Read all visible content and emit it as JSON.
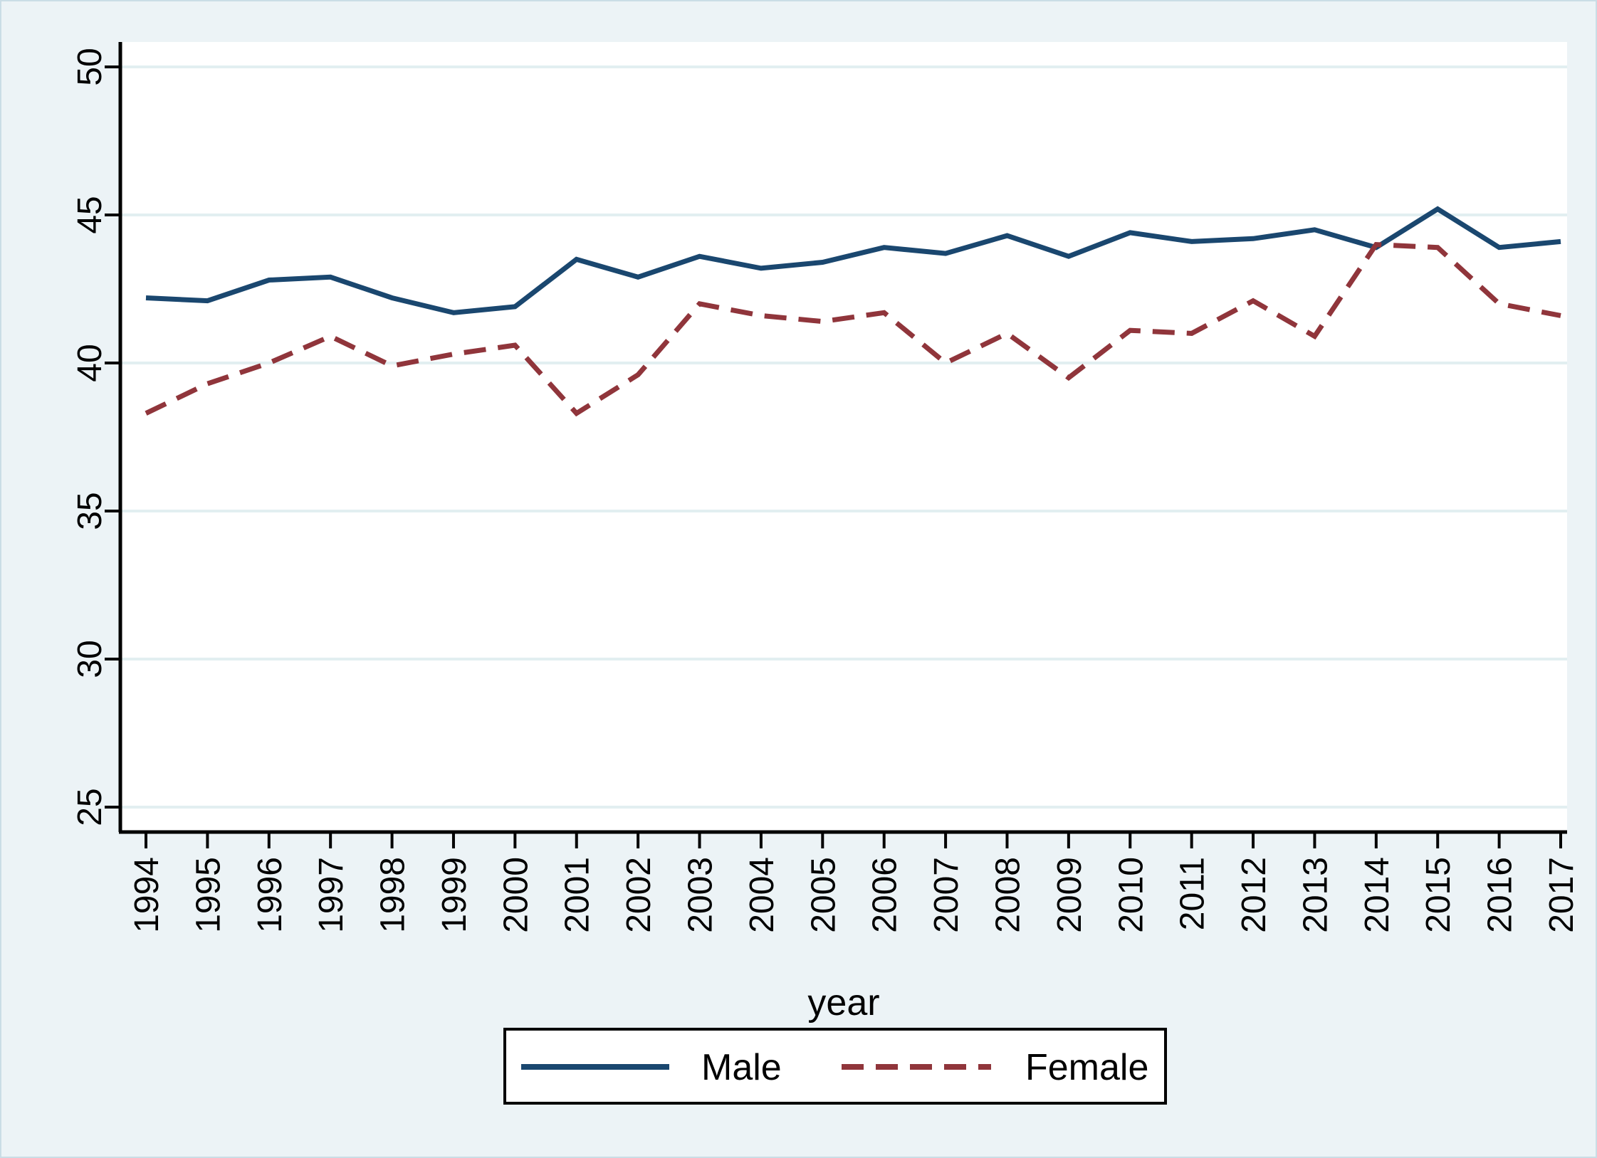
{
  "figure": {
    "background_color": "#ecf3f6",
    "plot_background_color": "#ffffff",
    "grid_color": "#e2eff1",
    "axis_color": "#000000",
    "legend_border_color": "#000000",
    "legend_background_color": "#ffffff"
  },
  "chart_data": {
    "type": "line",
    "title": "",
    "xlabel": "year",
    "ylabel": "",
    "grid": true,
    "legend_position": "bottom",
    "xlim": [
      1994,
      2017
    ],
    "ylim": [
      24.2,
      50.8
    ],
    "y_ticks": [
      25,
      30,
      35,
      40,
      45,
      50
    ],
    "x": [
      1994,
      1995,
      1996,
      1997,
      1998,
      1999,
      2000,
      2001,
      2002,
      2003,
      2004,
      2005,
      2006,
      2007,
      2008,
      2009,
      2010,
      2011,
      2012,
      2013,
      2014,
      2015,
      2016,
      2017
    ],
    "x_tick_labels": [
      "1994",
      "1995",
      "1996",
      "1997",
      "1998",
      "1999",
      "2000",
      "2001",
      "2002",
      "2003",
      "2004",
      "2005",
      "2006",
      "2007",
      "2008",
      "2009",
      "2010",
      "2011",
      "2012",
      "2013",
      "2014",
      "2015",
      "2016",
      "2017"
    ],
    "series": [
      {
        "name": "Male",
        "color": "#1a476f",
        "line_style": "solid",
        "values": [
          42.2,
          42.1,
          42.8,
          42.9,
          42.2,
          41.7,
          41.9,
          43.5,
          42.9,
          43.6,
          43.2,
          43.4,
          43.9,
          43.7,
          44.3,
          43.6,
          44.4,
          44.1,
          44.2,
          44.5,
          43.9,
          45.2,
          43.9,
          44.1
        ]
      },
      {
        "name": "Female",
        "color": "#90353b",
        "line_style": "dashed",
        "values": [
          38.3,
          39.3,
          40.0,
          40.9,
          39.9,
          40.3,
          40.6,
          38.3,
          39.6,
          42.0,
          41.6,
          41.4,
          41.7,
          40.0,
          41.0,
          39.5,
          41.1,
          41.0,
          42.1,
          40.9,
          44.0,
          43.9,
          42.0,
          41.6
        ]
      }
    ]
  }
}
